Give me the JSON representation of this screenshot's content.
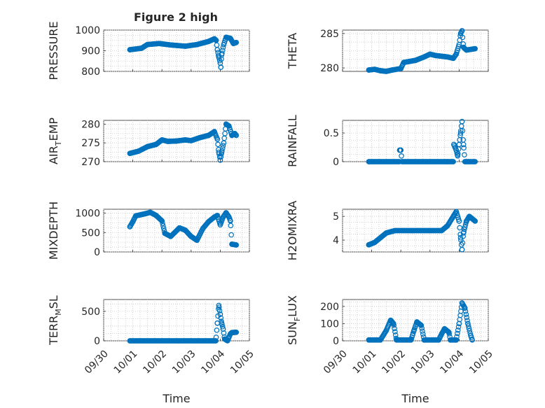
{
  "chart_data": {
    "type": "scatter",
    "title": "Figure 2 high",
    "xlabel": "Time",
    "x_ticks": [
      "09/30",
      "10/01",
      "10/02",
      "10/03",
      "10/04",
      "10/05"
    ],
    "x_range_days": [
      0,
      5
    ],
    "marker": "open-circle",
    "color": "#0072bd",
    "grid": true,
    "subplots": [
      {
        "id": "pressure",
        "ylabel": "PRESSURE",
        "ylim": [
          800,
          1000
        ],
        "yticks": [
          800,
          900,
          1000
        ],
        "knots": [
          [
            0.9,
            905
          ],
          [
            1.3,
            912
          ],
          [
            1.5,
            930
          ],
          [
            1.9,
            935
          ],
          [
            2.3,
            928
          ],
          [
            2.8,
            922
          ],
          [
            3.2,
            930
          ],
          [
            3.6,
            945
          ],
          [
            3.8,
            958
          ],
          [
            3.86,
            950
          ],
          [
            3.9,
            905
          ],
          [
            3.95,
            870
          ],
          [
            4.0,
            840
          ],
          [
            4.02,
            820
          ],
          [
            4.05,
            880
          ],
          [
            4.12,
            930
          ],
          [
            4.2,
            965
          ],
          [
            4.35,
            960
          ],
          [
            4.45,
            935
          ],
          [
            4.55,
            940
          ]
        ]
      },
      {
        "id": "theta",
        "ylabel": "THETA",
        "ylim": [
          279.5,
          285.5
        ],
        "yticks": [
          280,
          285
        ],
        "knots": [
          [
            0.9,
            279.7
          ],
          [
            1.1,
            279.8
          ],
          [
            1.3,
            279.6
          ],
          [
            1.5,
            279.5
          ],
          [
            1.7,
            279.7
          ],
          [
            2.0,
            279.9
          ],
          [
            2.1,
            280.8
          ],
          [
            2.5,
            281.1
          ],
          [
            2.8,
            281.6
          ],
          [
            3.0,
            282.0
          ],
          [
            3.2,
            281.8
          ],
          [
            3.6,
            281.6
          ],
          [
            3.8,
            281.4
          ],
          [
            3.9,
            282.0
          ],
          [
            4.0,
            283.4
          ],
          [
            4.05,
            285.0
          ],
          [
            4.1,
            285.4
          ],
          [
            4.15,
            283.0
          ],
          [
            4.25,
            282.6
          ],
          [
            4.55,
            282.8
          ]
        ]
      },
      {
        "id": "air_temp",
        "ylabel": "AIR",
        "ylabel_sub": "T",
        "ylabel_tail": "EMP",
        "ylim": [
          270,
          281
        ],
        "yticks": [
          270,
          275,
          280
        ],
        "knots": [
          [
            0.9,
            272.2
          ],
          [
            1.2,
            272.8
          ],
          [
            1.5,
            274.0
          ],
          [
            1.8,
            274.6
          ],
          [
            2.0,
            275.8
          ],
          [
            2.2,
            275.4
          ],
          [
            2.5,
            275.5
          ],
          [
            2.8,
            275.8
          ],
          [
            3.0,
            275.6
          ],
          [
            3.3,
            276.4
          ],
          [
            3.6,
            277.0
          ],
          [
            3.8,
            278.0
          ],
          [
            3.9,
            276.0
          ],
          [
            3.95,
            272.5
          ],
          [
            4.0,
            270.4
          ],
          [
            4.05,
            272.5
          ],
          [
            4.12,
            275.0
          ],
          [
            4.2,
            280.0
          ],
          [
            4.3,
            279.5
          ],
          [
            4.4,
            277.0
          ],
          [
            4.5,
            277.5
          ],
          [
            4.55,
            277.0
          ]
        ]
      },
      {
        "id": "rainfall",
        "ylabel": "RAINFALL",
        "ylim": [
          0,
          0.72
        ],
        "yticks": [
          0,
          0.5
        ],
        "knots": [
          [
            0.9,
            0
          ],
          [
            1.95,
            0
          ],
          [
            1.96,
            0.2
          ],
          [
            2.0,
            0.2
          ],
          [
            2.04,
            0
          ],
          [
            3.6,
            0
          ],
          [
            3.8,
            0
          ],
          [
            3.82,
            0.3
          ],
          [
            3.9,
            0.2
          ],
          [
            3.95,
            0.1
          ],
          [
            4.0,
            0.3
          ],
          [
            4.05,
            0.5
          ],
          [
            4.1,
            0.7
          ],
          [
            4.15,
            0.3
          ],
          [
            4.2,
            0
          ],
          [
            4.55,
            0
          ]
        ]
      },
      {
        "id": "mixdepth",
        "ylabel": "MIXDEPTH",
        "ylim": [
          0,
          1100
        ],
        "yticks": [
          0,
          500,
          1000
        ],
        "knots": [
          [
            0.9,
            650
          ],
          [
            1.0,
            780
          ],
          [
            1.1,
            930
          ],
          [
            1.4,
            980
          ],
          [
            1.6,
            1020
          ],
          [
            1.8,
            940
          ],
          [
            2.0,
            800
          ],
          [
            2.1,
            480
          ],
          [
            2.3,
            400
          ],
          [
            2.6,
            620
          ],
          [
            2.8,
            560
          ],
          [
            3.0,
            400
          ],
          [
            3.2,
            300
          ],
          [
            3.4,
            600
          ],
          [
            3.6,
            780
          ],
          [
            3.8,
            900
          ],
          [
            3.9,
            940
          ],
          [
            4.0,
            700
          ],
          [
            4.1,
            900
          ],
          [
            4.2,
            1010
          ],
          [
            4.3,
            900
          ],
          [
            4.35,
            800
          ],
          [
            4.4,
            200
          ],
          [
            4.55,
            180
          ]
        ]
      },
      {
        "id": "h2omixra",
        "ylabel": "H2OMIXRA",
        "ylim": [
          3.5,
          5.3
        ],
        "yticks": [
          4,
          5
        ],
        "knots": [
          [
            0.9,
            3.8
          ],
          [
            1.1,
            3.9
          ],
          [
            1.3,
            4.1
          ],
          [
            1.5,
            4.3
          ],
          [
            1.8,
            4.4
          ],
          [
            2.4,
            4.4
          ],
          [
            3.0,
            4.4
          ],
          [
            3.4,
            4.4
          ],
          [
            3.6,
            4.6
          ],
          [
            3.8,
            5.0
          ],
          [
            3.9,
            5.2
          ],
          [
            4.0,
            4.8
          ],
          [
            4.05,
            4.1
          ],
          [
            4.1,
            3.6
          ],
          [
            4.15,
            4.3
          ],
          [
            4.25,
            4.8
          ],
          [
            4.35,
            5.0
          ],
          [
            4.45,
            4.9
          ],
          [
            4.55,
            4.8
          ]
        ]
      },
      {
        "id": "terr_msl",
        "ylabel": "TERR",
        "ylabel_sub": "M",
        "ylabel_tail": "SL",
        "ylim": [
          0,
          700
        ],
        "yticks": [
          0,
          500
        ],
        "knots": [
          [
            0.9,
            0
          ],
          [
            3.85,
            0
          ],
          [
            3.9,
            300
          ],
          [
            3.95,
            600
          ],
          [
            4.0,
            450
          ],
          [
            4.05,
            300
          ],
          [
            4.1,
            200
          ],
          [
            4.15,
            30
          ],
          [
            4.25,
            0
          ],
          [
            4.35,
            120
          ],
          [
            4.4,
            140
          ],
          [
            4.55,
            145
          ]
        ]
      },
      {
        "id": "sun_flux",
        "ylabel": "SUN",
        "ylabel_sub": "F",
        "ylabel_tail": "LUX",
        "ylim": [
          0,
          240
        ],
        "yticks": [
          0,
          100,
          200
        ],
        "knots": [
          [
            0.9,
            5
          ],
          [
            1.3,
            5
          ],
          [
            1.5,
            60
          ],
          [
            1.65,
            120
          ],
          [
            1.75,
            100
          ],
          [
            1.85,
            5
          ],
          [
            2.35,
            5
          ],
          [
            2.45,
            60
          ],
          [
            2.55,
            110
          ],
          [
            2.7,
            90
          ],
          [
            2.8,
            5
          ],
          [
            3.3,
            5
          ],
          [
            3.4,
            40
          ],
          [
            3.5,
            70
          ],
          [
            3.65,
            50
          ],
          [
            3.7,
            5
          ],
          [
            3.9,
            5
          ],
          [
            4.0,
            100
          ],
          [
            4.1,
            220
          ],
          [
            4.2,
            190
          ],
          [
            4.3,
            100
          ],
          [
            4.4,
            30
          ],
          [
            4.45,
            5
          ]
        ]
      }
    ]
  }
}
